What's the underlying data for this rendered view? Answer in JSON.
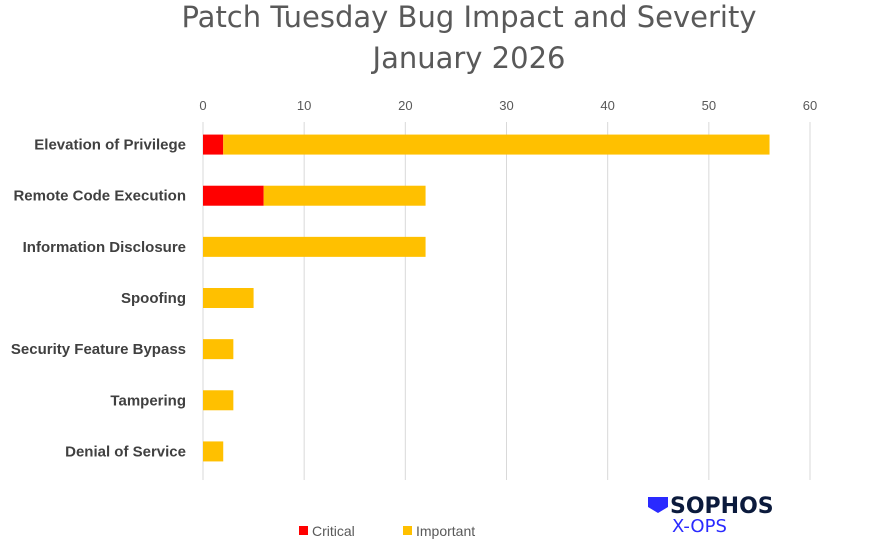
{
  "chart_data": {
    "type": "bar",
    "orientation": "horizontal",
    "stacked": true,
    "title": [
      "Patch Tuesday Bug Impact and Severity",
      "January 2026"
    ],
    "categories": [
      "Elevation of Privilege",
      "Remote Code Execution",
      "Information Disclosure",
      "Spoofing",
      "Security Feature Bypass",
      "Tampering",
      "Denial of Service"
    ],
    "series": [
      {
        "name": "Critical",
        "color": "#FF0000",
        "values": [
          2,
          6,
          0,
          0,
          0,
          0,
          0
        ]
      },
      {
        "name": "Important",
        "color": "#FFC000",
        "values": [
          54,
          16,
          22,
          5,
          3,
          3,
          2
        ]
      }
    ],
    "xlim": [
      0,
      60
    ],
    "xticks": [
      "0",
      "10",
      "20",
      "30",
      "40",
      "50",
      "60"
    ],
    "xaxis_position": "top",
    "grid": true,
    "legend": "bottom"
  },
  "logo": {
    "line1": "SOPHOS",
    "line2": "X-OPS"
  }
}
